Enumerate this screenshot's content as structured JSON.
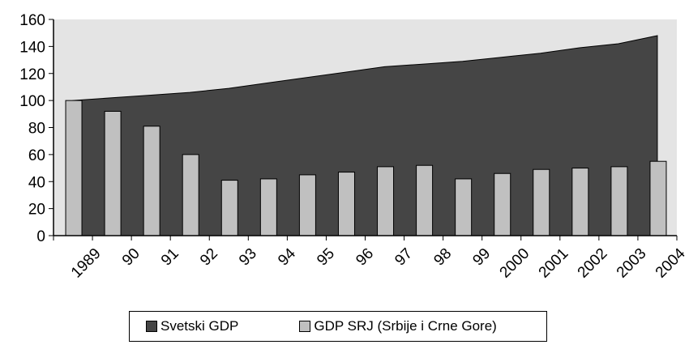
{
  "chart_data": {
    "type": "area",
    "title": "",
    "xlabel": "",
    "ylabel": "",
    "categories": [
      "1989",
      "90",
      "91",
      "92",
      "93",
      "94",
      "95",
      "96",
      "97",
      "98",
      "99",
      "2000",
      "2001",
      "2002",
      "2003",
      "2004"
    ],
    "ylim": [
      0,
      160
    ],
    "yticks": [
      "0",
      "20",
      "40",
      "60",
      "80",
      "100",
      "120",
      "140",
      "160"
    ],
    "grid": false,
    "legend_position": "bottom",
    "series": [
      {
        "name": "Svetski GDP",
        "type": "area",
        "color": "#454545",
        "values": [
          100,
          102,
          104,
          106,
          109,
          113,
          117,
          121,
          125,
          127,
          129,
          132,
          135,
          139,
          142,
          148
        ]
      },
      {
        "name": "GDP SRJ (Srbije i Crne Gore)",
        "type": "bar",
        "color": "#c0c0c0",
        "values": [
          100,
          92,
          81,
          60,
          41,
          42,
          45,
          47,
          51,
          52,
          42,
          46,
          49,
          50,
          51,
          55
        ]
      }
    ],
    "plot_background": "#e4e4e4"
  }
}
